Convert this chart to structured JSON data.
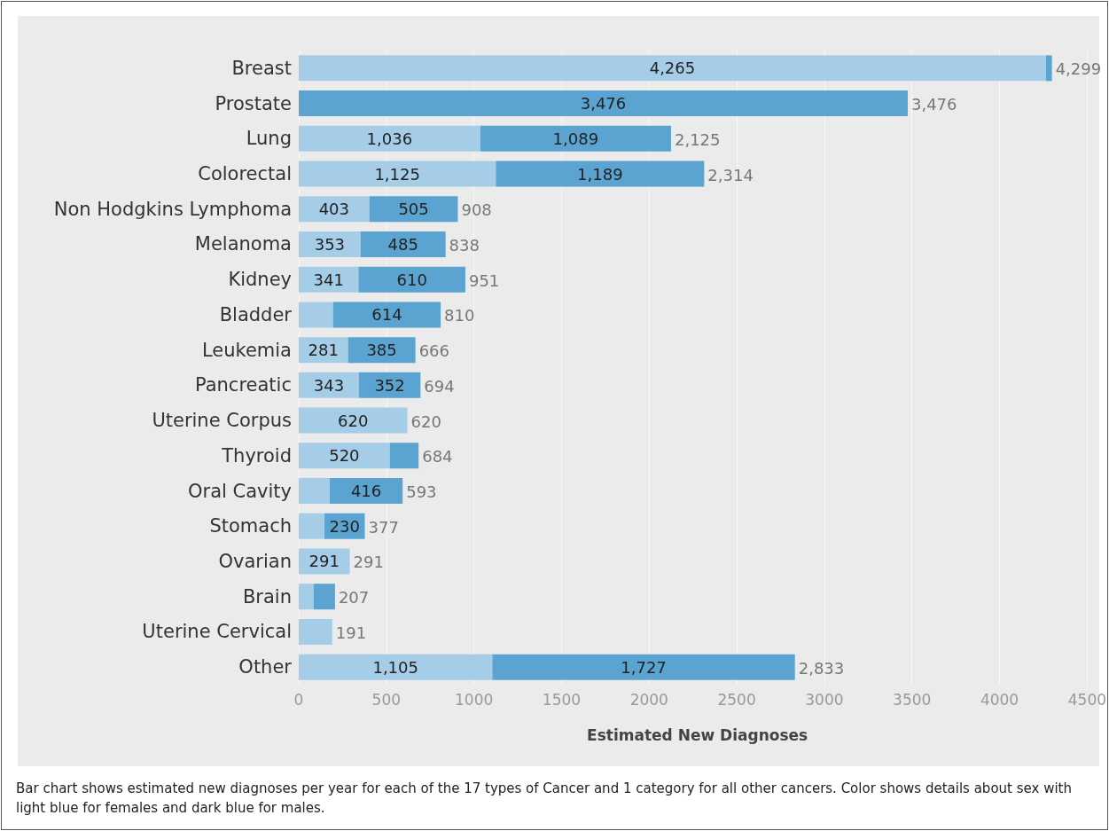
{
  "chart_data": {
    "type": "bar",
    "orientation": "horizontal",
    "stacked": true,
    "xlabel": "Estimated New Diagnoses",
    "categories": [
      "Breast",
      "Prostate",
      "Lung",
      "Colorectal",
      "Non Hodgkins Lymphoma",
      "Melanoma",
      "Kidney",
      "Bladder",
      "Leukemia",
      "Pancreatic",
      "Uterine Corpus",
      "Thyroid",
      "Oral Cavity",
      "Stomach",
      "Ovarian",
      "Brain",
      "Uterine Cervical",
      "Other"
    ],
    "series": [
      {
        "color": "#a6cde8",
        "values": [
          4265,
          null,
          1036,
          1125,
          403,
          353,
          341,
          196,
          281,
          343,
          620,
          520,
          177,
          147,
          291,
          85,
          191,
          1105
        ],
        "value_labels": [
          "4,265",
          null,
          "1,036",
          "1,125",
          "403",
          "353",
          "341",
          null,
          "281",
          "343",
          "620",
          "520",
          null,
          null,
          "291",
          null,
          null,
          "1,105"
        ]
      },
      {
        "color": "#5ba3d0",
        "values": [
          34,
          3476,
          1089,
          1189,
          505,
          485,
          610,
          614,
          385,
          352,
          null,
          164,
          416,
          230,
          null,
          122,
          null,
          1727
        ],
        "value_labels": [
          null,
          "3,476",
          "1,089",
          "1,189",
          "505",
          "485",
          "610",
          "614",
          "385",
          "352",
          null,
          null,
          "416",
          "230",
          null,
          null,
          null,
          "1,727"
        ]
      }
    ],
    "totals": [
      "4,299",
      "3,476",
      "2,125",
      "2,314",
      "908",
      "838",
      "951",
      "810",
      "666",
      "694",
      "620",
      "684",
      "593",
      "377",
      "291",
      "207",
      "191",
      "2,833"
    ],
    "xlim": [
      0,
      4550
    ],
    "xticks": [
      0,
      500,
      1000,
      1500,
      2000,
      2500,
      3000,
      3500,
      4000,
      4500
    ],
    "grid": "x",
    "annotations": [
      "Bar chart shows estimated new diagnoses per year for each of the 17 types of Cancer and 1 category for all other cancers. Color shows details about sex with light blue for females and dark blue for males."
    ]
  }
}
